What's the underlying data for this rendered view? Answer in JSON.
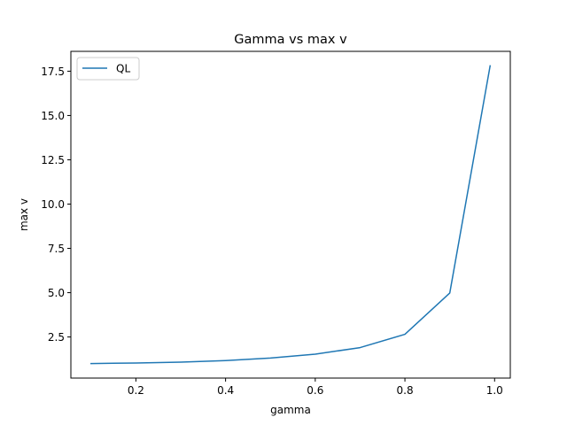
{
  "chart_data": {
    "type": "line",
    "title": "Gamma vs max v",
    "xlabel": "gamma",
    "ylabel": "max v",
    "xlim": [
      0.055,
      1.035
    ],
    "ylim": [
      0.18,
      18.62
    ],
    "xticks": [
      0.2,
      0.4,
      0.6,
      0.8,
      1.0
    ],
    "xtick_labels": [
      "0.2",
      "0.4",
      "0.6",
      "0.8",
      "1.0"
    ],
    "yticks": [
      2.5,
      5.0,
      7.5,
      10.0,
      12.5,
      15.0,
      17.5
    ],
    "ytick_labels": [
      "2.5",
      "5.0",
      "7.5",
      "10.0",
      "12.5",
      "15.0",
      "17.5"
    ],
    "grid": false,
    "legend_position": "upper-left",
    "series": [
      {
        "name": "QL",
        "color": "#1f77b4",
        "x": [
          0.1,
          0.2,
          0.3,
          0.4,
          0.5,
          0.6,
          0.7,
          0.8,
          0.9,
          0.99
        ],
        "values": [
          1.0,
          1.03,
          1.08,
          1.17,
          1.31,
          1.53,
          1.9,
          2.65,
          4.98,
          17.8
        ]
      }
    ]
  }
}
